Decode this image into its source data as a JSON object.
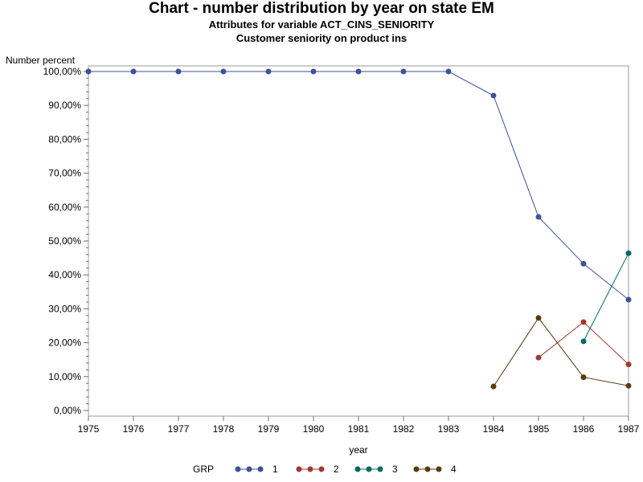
{
  "chart_data": {
    "type": "line",
    "title": "Chart - number distribution by year on state EM",
    "subtitle": "Attributes for variable ACT_CINS_SENIORITY",
    "subtitle2": "Customer seniority on product ins",
    "ylabel": "Number percent",
    "xlabel": "year",
    "legend_title": "GRP",
    "legend_position": "bottom",
    "ylim": [
      0,
      100
    ],
    "xlim": [
      1975,
      1987
    ],
    "y_ticks": [
      "0,00%",
      "10,00%",
      "20,00%",
      "30,00%",
      "40,00%",
      "50,00%",
      "60,00%",
      "70,00%",
      "80,00%",
      "90,00%",
      "100,00%"
    ],
    "x_ticks": [
      "1975",
      "1976",
      "1977",
      "1978",
      "1979",
      "1980",
      "1981",
      "1982",
      "1983",
      "1984",
      "1985",
      "1986",
      "1987"
    ],
    "grid": false,
    "series": [
      {
        "name": "1",
        "color": "#3f5297",
        "x": [
          1975,
          1976,
          1977,
          1978,
          1979,
          1980,
          1981,
          1982,
          1983,
          1984,
          1985,
          1986,
          1987
        ],
        "y": [
          100,
          100,
          100,
          100,
          100,
          100,
          100,
          100,
          100,
          92.9,
          57.1,
          43.3,
          32.7
        ]
      },
      {
        "name": "2",
        "color": "#a23a2e",
        "x": [
          1985,
          1986,
          1987
        ],
        "y": [
          15.6,
          26.1,
          13.6
        ]
      },
      {
        "name": "3",
        "color": "#016b5e",
        "x": [
          1986,
          1987
        ],
        "y": [
          20.4,
          46.4
        ]
      },
      {
        "name": "4",
        "color": "#5a3a12",
        "x": [
          1984,
          1985,
          1986,
          1987
        ],
        "y": [
          7.1,
          27.3,
          9.8,
          7.3
        ]
      }
    ]
  }
}
